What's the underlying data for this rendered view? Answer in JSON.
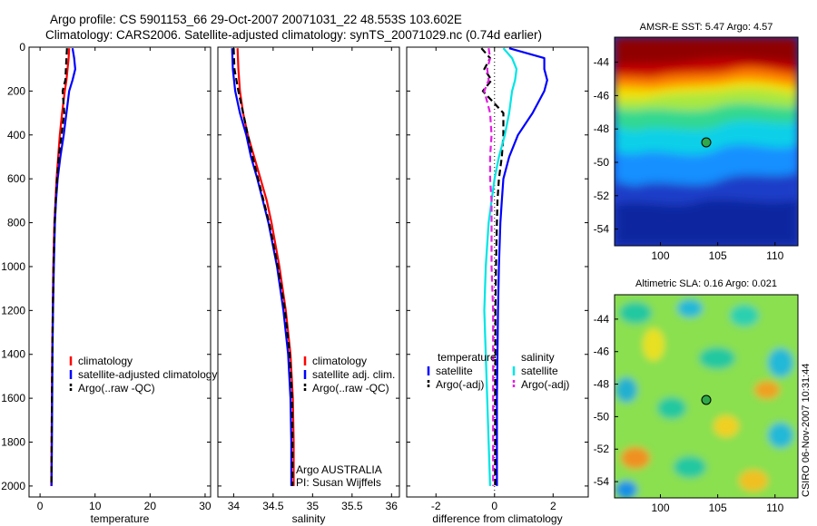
{
  "figure": {
    "title_line1": "Argo profile: CS 5901153_66 29-Oct-2007 20071031_22 48.553S 103.602E",
    "title_line2": "Climatology: CARS2006. Satellite-adjusted climatology: synTS_20071029.nc (0.74d earlier)",
    "side_stamp": "CSIRO 06-Nov-2007 10:31:44"
  },
  "colors": {
    "climatology": "#ff0000",
    "satellite": "#0000ff",
    "argo": "#000000",
    "salinity_satellite": "#00e5e5",
    "salinity_argo": "#e020e0"
  },
  "chart_data": [
    {
      "id": "temperature",
      "type": "line",
      "xlabel": "temperature",
      "ylabel": "",
      "xlim": [
        -2,
        31
      ],
      "ylim": [
        2050,
        0
      ],
      "xticks": [
        "0",
        "10",
        "20",
        "30"
      ],
      "yticks": [
        "0",
        "200",
        "400",
        "600",
        "800",
        "1000",
        "1200",
        "1400",
        "1600",
        "1800",
        "2000"
      ],
      "legend": [
        "climatology",
        "satellite-adjusted climatology",
        "Argo(..raw -QC)"
      ],
      "series": [
        {
          "name": "climatology",
          "color": "climatology",
          "style": "solid",
          "depth": [
            5,
            50,
            100,
            150,
            200,
            300,
            400,
            500,
            600,
            700,
            800,
            1000,
            1200,
            1400,
            1600,
            1800,
            2000
          ],
          "values": [
            5.3,
            5.2,
            5.0,
            4.8,
            4.5,
            4.0,
            3.6,
            3.3,
            3.0,
            2.8,
            2.6,
            2.4,
            2.3,
            2.2,
            2.15,
            2.1,
            2.05
          ]
        },
        {
          "name": "satellite-adjusted climatology",
          "color": "satellite",
          "style": "solid",
          "depth": [
            5,
            50,
            100,
            150,
            200,
            300,
            400,
            500,
            600,
            700,
            800,
            1000,
            1200,
            1400,
            1600,
            1800,
            2000
          ],
          "values": [
            5.9,
            6.2,
            6.4,
            5.9,
            5.3,
            4.8,
            4.3,
            3.7,
            3.2,
            2.9,
            2.7,
            2.5,
            2.35,
            2.25,
            2.2,
            2.15,
            2.1
          ]
        },
        {
          "name": "Argo(..raw -QC)",
          "color": "argo",
          "style": "dash",
          "depth": [
            5,
            50,
            100,
            150,
            200,
            300,
            400,
            500,
            600,
            700,
            800,
            1000,
            1200,
            1400,
            1600,
            1800,
            2000
          ],
          "values": [
            4.9,
            4.8,
            4.7,
            4.6,
            4.1,
            4.4,
            3.9,
            3.4,
            3.1,
            2.85,
            2.65,
            2.45,
            2.32,
            2.22,
            2.16,
            2.11,
            2.06
          ]
        }
      ]
    },
    {
      "id": "salinity",
      "type": "line",
      "xlabel": "salinity",
      "ylabel": "",
      "xlim": [
        33.8,
        36.1
      ],
      "ylim": [
        2050,
        0
      ],
      "xticks": [
        "34",
        "34.5",
        "35",
        "35.5",
        "36"
      ],
      "yticks": [],
      "legend": [
        "climatology",
        "satellite adj. clim.",
        "Argo(..raw -QC)"
      ],
      "annotation": [
        "Argo AUSTRALIA",
        "PI: Susan Wijffels"
      ],
      "series": [
        {
          "name": "climatology",
          "color": "climatology",
          "style": "solid",
          "depth": [
            5,
            100,
            200,
            300,
            400,
            500,
            600,
            700,
            800,
            1000,
            1200,
            1400,
            1600,
            1800,
            2000
          ],
          "values": [
            34.05,
            34.06,
            34.08,
            34.12,
            34.18,
            34.26,
            34.34,
            34.42,
            34.48,
            34.58,
            34.66,
            34.72,
            34.75,
            34.76,
            34.76
          ]
        },
        {
          "name": "satellite adj. clim.",
          "color": "satellite",
          "style": "solid",
          "depth": [
            5,
            100,
            200,
            300,
            400,
            500,
            600,
            700,
            800,
            1000,
            1200,
            1400,
            1600,
            1800,
            2000
          ],
          "values": [
            33.98,
            33.99,
            34.02,
            34.08,
            34.16,
            34.22,
            34.3,
            34.37,
            34.44,
            34.55,
            34.63,
            34.69,
            34.72,
            34.73,
            34.73
          ]
        },
        {
          "name": "Argo(..raw -QC)",
          "color": "argo",
          "style": "dash",
          "depth": [
            5,
            100,
            200,
            300,
            400,
            500,
            600,
            700,
            800,
            1000,
            1200,
            1400,
            1600,
            1800,
            2000
          ],
          "values": [
            34.0,
            34.01,
            34.06,
            34.12,
            34.18,
            34.24,
            34.31,
            34.38,
            34.45,
            34.56,
            34.65,
            34.71,
            34.74,
            34.745,
            34.745
          ]
        }
      ]
    },
    {
      "id": "difference",
      "type": "line",
      "xlabel": "difference from climatology",
      "ylabel": "",
      "xlim": [
        -3,
        3.2
      ],
      "ylim": [
        2050,
        0
      ],
      "xticks": [
        "-2",
        "0",
        "2"
      ],
      "yticks": [],
      "legend_left_title": "temperature",
      "legend_right_title": "salinity",
      "legend": [
        "satellite",
        "Argo(-adj)",
        "satellite",
        "Argo(-adj)"
      ],
      "series": [
        {
          "name": "satellite",
          "color": "satellite",
          "style": "solid",
          "depth": [
            5,
            50,
            100,
            150,
            200,
            300,
            400,
            500,
            600,
            700,
            800,
            1000,
            1200,
            1400,
            1600,
            1800,
            2000
          ],
          "values": [
            0.5,
            1.7,
            1.7,
            1.8,
            1.7,
            1.3,
            0.8,
            0.5,
            0.3,
            0.25,
            0.2,
            0.15,
            0.12,
            0.1,
            0.08,
            0.08,
            0.08
          ]
        },
        {
          "name": "Argo(-adj)",
          "color": "argo",
          "style": "dash",
          "depth": [
            5,
            50,
            100,
            150,
            200,
            300,
            400,
            500,
            600,
            700,
            800,
            1000,
            1200,
            1400,
            1600,
            1800,
            2000
          ],
          "values": [
            -0.45,
            -0.15,
            -0.35,
            -0.1,
            -0.4,
            0.3,
            0.3,
            0.25,
            0.15,
            0.1,
            0.08,
            0.05,
            0.03,
            0.03,
            0.02,
            0.02,
            0.02
          ]
        },
        {
          "name": "satellite",
          "color": "salinity_satellite",
          "style": "solid",
          "depth": [
            5,
            50,
            100,
            150,
            200,
            300,
            400,
            500,
            600,
            700,
            800,
            1000,
            1200,
            1400,
            1600,
            1800,
            2000
          ],
          "values": [
            0.3,
            0.6,
            0.75,
            0.7,
            0.6,
            0.5,
            0.35,
            0.15,
            0.0,
            -0.1,
            -0.2,
            -0.3,
            -0.35,
            -0.3,
            -0.25,
            -0.2,
            -0.15
          ]
        },
        {
          "name": "Argo(-adj)",
          "color": "salinity_argo",
          "style": "dash",
          "depth": [
            5,
            50,
            100,
            150,
            200,
            300,
            400,
            500,
            600,
            700,
            800,
            1000,
            1200,
            1400,
            1600,
            1800,
            2000
          ],
          "values": [
            -0.2,
            -0.15,
            -0.25,
            -0.2,
            -0.35,
            -0.15,
            -0.1,
            -0.15,
            -0.15,
            -0.1,
            -0.1,
            -0.1,
            -0.05,
            -0.05,
            -0.05,
            -0.05,
            -0.05
          ]
        }
      ]
    },
    {
      "id": "sst_map",
      "type": "heatmap",
      "title": "AMSR-E SST: 5.47 Argo: 4.57",
      "xlim": [
        96,
        112
      ],
      "ylim": [
        -55,
        -42.5
      ],
      "xticks": [
        "100",
        "105",
        "110"
      ],
      "yticks": [
        "-44",
        "-46",
        "-48",
        "-50",
        "-52",
        "-54"
      ],
      "colormap": [
        "#00008f",
        "#0000ff",
        "#0080ff",
        "#00ffff",
        "#80ff80",
        "#ffff00",
        "#ff8000",
        "#ff0000",
        "#800000"
      ],
      "marker": {
        "lon": 103.6,
        "lat": -48.55
      }
    },
    {
      "id": "sla_map",
      "type": "heatmap",
      "title": "Altimetric SLA: 0.16 Argo: 0.021",
      "xlim": [
        96,
        112
      ],
      "ylim": [
        -55,
        -42.5
      ],
      "xticks": [
        "100",
        "105",
        "110"
      ],
      "yticks": [
        "-44",
        "-46",
        "-48",
        "-50",
        "-52",
        "-54"
      ],
      "colormap": [
        "#00008f",
        "#0000ff",
        "#0080ff",
        "#00ffff",
        "#80ff80",
        "#ffff00",
        "#ff8000",
        "#ff0000",
        "#800000"
      ],
      "marker": {
        "lon": 103.6,
        "lat": -48.55
      }
    }
  ]
}
